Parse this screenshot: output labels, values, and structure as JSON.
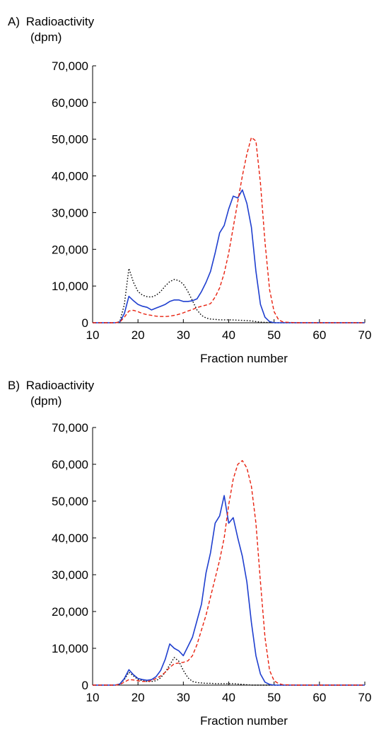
{
  "chart_data": [
    {
      "type": "line",
      "panel_label": "A)",
      "title": "Radioactivity",
      "ylabel": "(dpm)",
      "xlabel": "Fraction number",
      "xlim": [
        10,
        70
      ],
      "ylim": [
        0,
        70000
      ],
      "xticks": [
        "10",
        "20",
        "30",
        "40",
        "50",
        "60",
        "70"
      ],
      "yticks": [
        "0",
        "10,000",
        "20,000",
        "30,000",
        "40,000",
        "50,000",
        "60,000",
        "70,000"
      ],
      "grid": false,
      "series": [
        {
          "color": "#000000",
          "dash": "dotted",
          "x": [
            10,
            14,
            15,
            16,
            17,
            18,
            19,
            20,
            21,
            22,
            23,
            24,
            25,
            26,
            27,
            28,
            29,
            30,
            31,
            32,
            33,
            34,
            35,
            36,
            37,
            38,
            39,
            40,
            41,
            42,
            43,
            44,
            45,
            46,
            47,
            48,
            50,
            55,
            60,
            70
          ],
          "y": [
            0,
            0,
            0,
            300,
            5000,
            14800,
            11000,
            8500,
            7500,
            7100,
            7000,
            7500,
            8500,
            10000,
            11200,
            11800,
            11500,
            10500,
            8500,
            6000,
            3500,
            2000,
            1300,
            1000,
            900,
            800,
            800,
            800,
            750,
            700,
            650,
            600,
            500,
            300,
            200,
            100,
            0,
            0,
            0,
            0
          ]
        },
        {
          "color": "#1f3fcf",
          "dash": "solid",
          "x": [
            10,
            15,
            16,
            17,
            18,
            19,
            20,
            21,
            22,
            23,
            24,
            25,
            26,
            27,
            28,
            29,
            30,
            31,
            32,
            33,
            34,
            35,
            36,
            37,
            38,
            39,
            40,
            41,
            42,
            43,
            44,
            45,
            46,
            47,
            48,
            49,
            50,
            55,
            60,
            70
          ],
          "y": [
            0,
            0,
            200,
            2500,
            7200,
            6000,
            5000,
            4500,
            4200,
            3500,
            4000,
            4500,
            5000,
            5800,
            6200,
            6200,
            5800,
            5800,
            6000,
            6500,
            8500,
            11000,
            14000,
            19000,
            24500,
            26500,
            31000,
            34500,
            34000,
            36200,
            32500,
            26000,
            14000,
            5000,
            1500,
            300,
            0,
            0,
            0,
            0
          ]
        },
        {
          "color": "#e8210f",
          "dash": "dashed",
          "x": [
            10,
            15,
            16,
            17,
            18,
            19,
            20,
            21,
            22,
            23,
            24,
            25,
            26,
            27,
            28,
            29,
            30,
            31,
            32,
            33,
            34,
            35,
            36,
            37,
            38,
            39,
            40,
            41,
            42,
            43,
            44,
            45,
            46,
            47,
            48,
            49,
            50,
            51,
            52,
            55,
            60,
            70
          ],
          "y": [
            0,
            0,
            200,
            1500,
            3200,
            3400,
            3000,
            2500,
            2200,
            2000,
            1800,
            1700,
            1700,
            1800,
            2000,
            2300,
            2700,
            3200,
            3600,
            4100,
            4500,
            4800,
            5200,
            7000,
            9500,
            13500,
            19000,
            26000,
            33000,
            40000,
            46000,
            50500,
            49500,
            38000,
            22000,
            9000,
            3000,
            800,
            200,
            0,
            0,
            0
          ]
        }
      ]
    },
    {
      "type": "line",
      "panel_label": "B)",
      "title": "Radioactivity",
      "ylabel": "(dpm)",
      "xlabel": "Fraction number",
      "xlim": [
        10,
        70
      ],
      "ylim": [
        0,
        70000
      ],
      "xticks": [
        "10",
        "20",
        "30",
        "40",
        "50",
        "60",
        "70"
      ],
      "yticks": [
        "0",
        "10,000",
        "20,000",
        "30,000",
        "40,000",
        "50,000",
        "60,000",
        "70,000"
      ],
      "grid": false,
      "series": [
        {
          "color": "#000000",
          "dash": "dotted",
          "x": [
            10,
            15,
            16,
            17,
            18,
            19,
            20,
            21,
            22,
            23,
            24,
            25,
            26,
            27,
            28,
            29,
            30,
            31,
            32,
            33,
            34,
            35,
            36,
            37,
            38,
            39,
            40,
            41,
            42,
            43,
            44,
            45,
            50,
            55,
            60,
            70
          ],
          "y": [
            0,
            0,
            300,
            1500,
            3500,
            2500,
            1500,
            1200,
            1000,
            1000,
            1200,
            2000,
            3500,
            5500,
            7500,
            6500,
            4000,
            2000,
            1000,
            700,
            600,
            500,
            500,
            400,
            400,
            400,
            400,
            400,
            300,
            200,
            100,
            0,
            0,
            0,
            0,
            0
          ]
        },
        {
          "color": "#1f3fcf",
          "dash": "solid",
          "x": [
            10,
            15,
            16,
            17,
            18,
            19,
            20,
            21,
            22,
            23,
            24,
            25,
            26,
            27,
            28,
            29,
            30,
            31,
            32,
            33,
            34,
            35,
            36,
            37,
            38,
            39,
            40,
            41,
            42,
            43,
            44,
            45,
            46,
            47,
            48,
            49,
            50,
            51,
            55,
            60,
            70
          ],
          "y": [
            0,
            0,
            300,
            1800,
            4200,
            2800,
            1800,
            1500,
            1300,
            1500,
            2300,
            4000,
            7000,
            11200,
            10000,
            9300,
            8000,
            10500,
            13000,
            17500,
            22000,
            30500,
            36000,
            44000,
            46000,
            51500,
            44000,
            45500,
            40000,
            35000,
            28000,
            17000,
            8000,
            3000,
            800,
            200,
            0,
            0,
            0,
            0,
            0
          ]
        },
        {
          "color": "#e8210f",
          "dash": "dashed",
          "x": [
            10,
            15,
            16,
            17,
            18,
            19,
            20,
            21,
            22,
            23,
            24,
            25,
            26,
            27,
            28,
            29,
            30,
            31,
            32,
            33,
            34,
            35,
            36,
            37,
            38,
            39,
            40,
            41,
            42,
            43,
            44,
            45,
            46,
            47,
            48,
            49,
            50,
            51,
            52,
            55,
            60,
            70
          ],
          "y": [
            0,
            0,
            200,
            800,
            1500,
            1400,
            1200,
            1000,
            1000,
            1200,
            1800,
            2500,
            3500,
            4800,
            5800,
            6000,
            6200,
            6600,
            8000,
            11000,
            15000,
            19000,
            24000,
            29000,
            34000,
            40000,
            49000,
            56000,
            60000,
            61000,
            59000,
            54000,
            44000,
            28000,
            13000,
            4000,
            1200,
            400,
            100,
            0,
            0,
            0
          ]
        }
      ]
    }
  ]
}
